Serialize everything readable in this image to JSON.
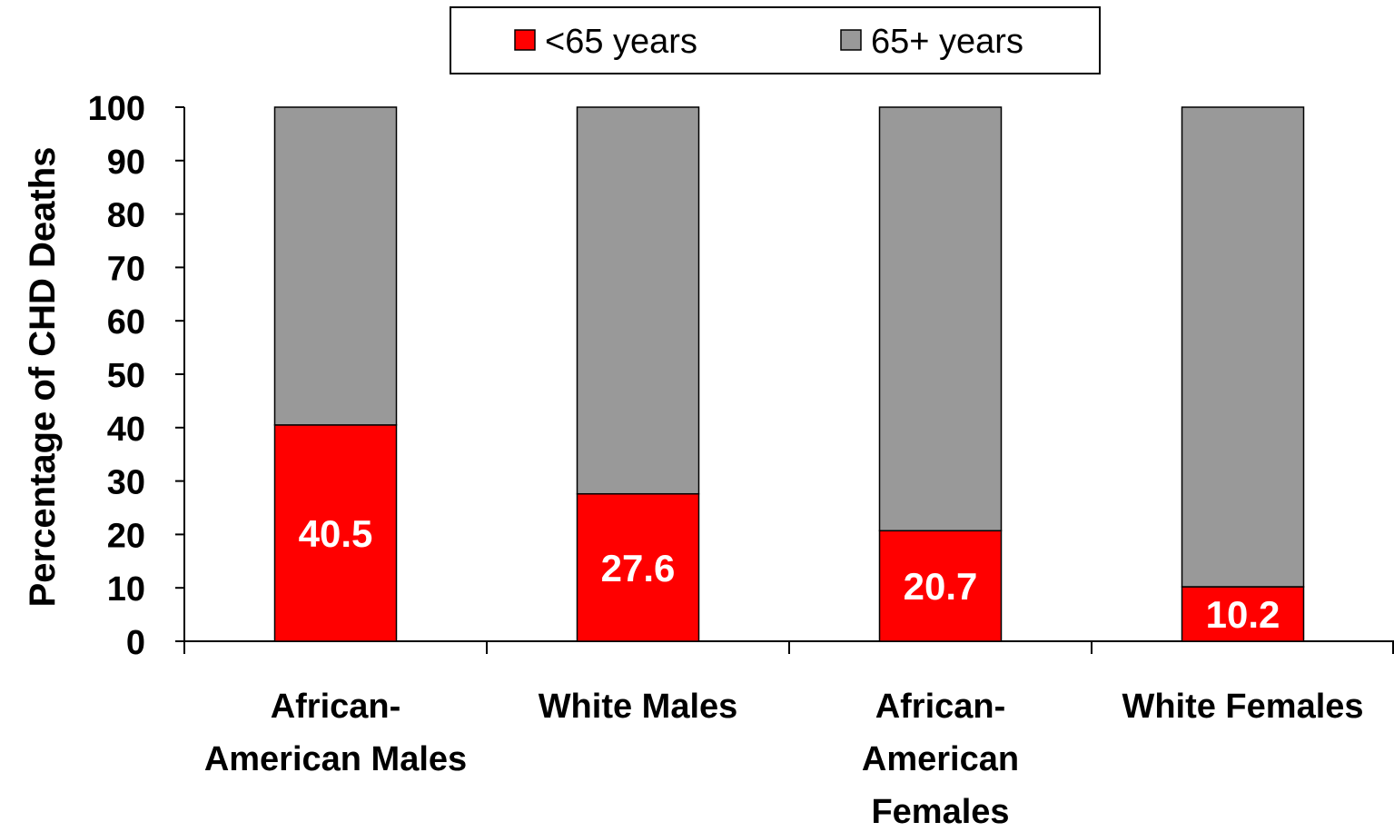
{
  "chart_data": {
    "type": "bar",
    "stacked": true,
    "title": "",
    "ylabel": "Percentage of CHD Deaths",
    "xlabel": "",
    "ylim": [
      0,
      100
    ],
    "yticks": [
      0,
      10,
      20,
      30,
      40,
      50,
      60,
      70,
      80,
      90,
      100
    ],
    "categories": [
      [
        "African-",
        "American Males"
      ],
      [
        "White Males"
      ],
      [
        "African-",
        "American",
        "Females"
      ],
      [
        "White Females"
      ]
    ],
    "series": [
      {
        "name": "<65 years",
        "color": "#ff0000",
        "values": [
          40.5,
          27.6,
          20.7,
          10.2
        ]
      },
      {
        "name": "65+ years",
        "color": "#999999",
        "values": [
          59.5,
          72.4,
          79.3,
          89.8
        ]
      }
    ],
    "data_labels": [
      "40.5",
      "27.6",
      "20.7",
      "10.2"
    ],
    "legend": {
      "position": "top",
      "items": [
        "<65 years",
        "65+ years"
      ]
    },
    "grid": false
  }
}
